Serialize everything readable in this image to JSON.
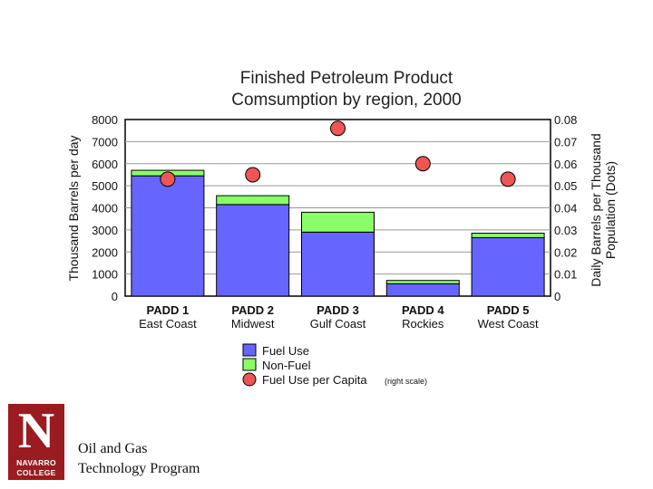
{
  "chart_data": {
    "type": "bar",
    "stacked": true,
    "title_lines": [
      "Finished Petroleum Product",
      "Comsumption by region, 2000"
    ],
    "categories": [
      {
        "name": "PADD 1",
        "region": "East Coast"
      },
      {
        "name": "PADD 2",
        "region": "Midwest"
      },
      {
        "name": "PADD 3",
        "region": "Gulf Coast"
      },
      {
        "name": "PADD 4",
        "region": "Rockies"
      },
      {
        "name": "PADD 5",
        "region": "West Coast"
      }
    ],
    "series": [
      {
        "name": "Fuel Use",
        "values": [
          5450,
          4150,
          2900,
          560,
          2650
        ],
        "color": "#6666ff"
      },
      {
        "name": "Non-Fuel",
        "values": [
          250,
          400,
          900,
          150,
          200
        ],
        "color": "#88ff66"
      },
      {
        "name": "Fuel Use per Capita",
        "axis": "right",
        "values": [
          0.053,
          0.055,
          0.076,
          0.06,
          0.053
        ],
        "color": "#ee5555"
      }
    ],
    "ylabel": "Thousand Barrels per day",
    "ylabel_right_lines": [
      "Daily Barrels per Thousand",
      "Population (Dots)"
    ],
    "ylim": [
      0,
      8000
    ],
    "ylim_right": [
      0,
      0.08
    ],
    "yticks": [
      "0",
      "1000",
      "2000",
      "3000",
      "4000",
      "5000",
      "6000",
      "7000",
      "8000"
    ],
    "yticks_right": [
      "0",
      "0.01",
      "0.02",
      "0.03",
      "0.04",
      "0.05",
      "0.06",
      "0.07",
      "0.08"
    ],
    "grid": true,
    "legend_position": "bottom",
    "legend_note": "(right scale)"
  },
  "footer": {
    "logo_text": [
      "NAVARRO",
      "COLLEGE"
    ],
    "logo_letter": "N",
    "program_lines": [
      "Oil and Gas",
      "Technology Program"
    ]
  }
}
